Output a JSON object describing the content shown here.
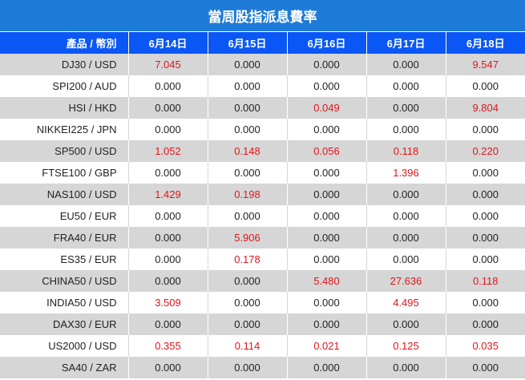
{
  "title": "當周股指派息費率",
  "header": {
    "label": "產品 / 幣別",
    "dates": [
      "6月14日",
      "6月15日",
      "6月16日",
      "6月17日",
      "6月18日"
    ]
  },
  "colors": {
    "title_bg": "#1f7bd8",
    "header_bg": "#0b57f5",
    "row_shade": "#d6d6d6",
    "highlight": "#e0161b"
  },
  "rows": [
    {
      "symbol": "DJ30 / USD",
      "values": [
        "7.045",
        "0.000",
        "0.000",
        "0.000",
        "9.547"
      ],
      "red": [
        true,
        false,
        false,
        false,
        true
      ]
    },
    {
      "symbol": "SPI200 / AUD",
      "values": [
        "0.000",
        "0.000",
        "0.000",
        "0.000",
        "0.000"
      ],
      "red": [
        false,
        false,
        false,
        false,
        false
      ]
    },
    {
      "symbol": "HSI / HKD",
      "values": [
        "0.000",
        "0.000",
        "0.049",
        "0.000",
        "9.804"
      ],
      "red": [
        false,
        false,
        true,
        false,
        true
      ]
    },
    {
      "symbol": "NIKKEI225 / JPN",
      "values": [
        "0.000",
        "0.000",
        "0.000",
        "0.000",
        "0.000"
      ],
      "red": [
        false,
        false,
        false,
        false,
        false
      ]
    },
    {
      "symbol": "SP500 / USD",
      "values": [
        "1.052",
        "0.148",
        "0.056",
        "0.118",
        "0.220"
      ],
      "red": [
        true,
        true,
        true,
        true,
        true
      ]
    },
    {
      "symbol": "FTSE100 / GBP",
      "values": [
        "0.000",
        "0.000",
        "0.000",
        "1.396",
        "0.000"
      ],
      "red": [
        false,
        false,
        false,
        true,
        false
      ]
    },
    {
      "symbol": "NAS100 / USD",
      "values": [
        "1.429",
        "0.198",
        "0.000",
        "0.000",
        "0.000"
      ],
      "red": [
        true,
        true,
        false,
        false,
        false
      ]
    },
    {
      "symbol": "EU50 / EUR",
      "values": [
        "0.000",
        "0.000",
        "0.000",
        "0.000",
        "0.000"
      ],
      "red": [
        false,
        false,
        false,
        false,
        false
      ]
    },
    {
      "symbol": "FRA40 / EUR",
      "values": [
        "0.000",
        "5.906",
        "0.000",
        "0.000",
        "0.000"
      ],
      "red": [
        false,
        true,
        false,
        false,
        false
      ]
    },
    {
      "symbol": "ES35 / EUR",
      "values": [
        "0.000",
        "0.178",
        "0.000",
        "0.000",
        "0.000"
      ],
      "red": [
        false,
        true,
        false,
        false,
        false
      ]
    },
    {
      "symbol": "CHINA50 / USD",
      "values": [
        "0.000",
        "0.000",
        "5.480",
        "27.636",
        "0.118"
      ],
      "red": [
        false,
        false,
        true,
        true,
        true
      ]
    },
    {
      "symbol": "INDIA50 / USD",
      "values": [
        "3.509",
        "0.000",
        "0.000",
        "4.495",
        "0.000"
      ],
      "red": [
        true,
        false,
        false,
        true,
        false
      ]
    },
    {
      "symbol": "DAX30 / EUR",
      "values": [
        "0.000",
        "0.000",
        "0.000",
        "0.000",
        "0.000"
      ],
      "red": [
        false,
        false,
        false,
        false,
        false
      ]
    },
    {
      "symbol": "US2000 / USD",
      "values": [
        "0.355",
        "0.114",
        "0.021",
        "0.125",
        "0.035"
      ],
      "red": [
        true,
        true,
        true,
        true,
        true
      ]
    },
    {
      "symbol": "SA40 / ZAR",
      "values": [
        "0.000",
        "0.000",
        "0.000",
        "0.000",
        "0.000"
      ],
      "red": [
        false,
        false,
        false,
        false,
        false
      ]
    }
  ]
}
